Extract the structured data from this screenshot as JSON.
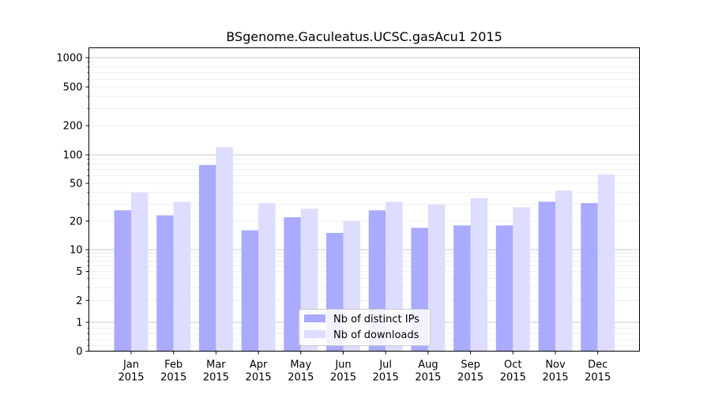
{
  "chart_data": {
    "type": "bar",
    "title": "BSgenome.Gaculeatus.UCSC.gasAcu1 2015",
    "xlabel": "",
    "ylabel": "",
    "yscale": "symlog",
    "ylim": [
      0,
      1300
    ],
    "grid": "y",
    "legend_position": "bottom-center",
    "categories": [
      [
        "Jan",
        "2015"
      ],
      [
        "Feb",
        "2015"
      ],
      [
        "Mar",
        "2015"
      ],
      [
        "Apr",
        "2015"
      ],
      [
        "May",
        "2015"
      ],
      [
        "Jun",
        "2015"
      ],
      [
        "Jul",
        "2015"
      ],
      [
        "Aug",
        "2015"
      ],
      [
        "Sep",
        "2015"
      ],
      [
        "Oct",
        "2015"
      ],
      [
        "Nov",
        "2015"
      ],
      [
        "Dec",
        "2015"
      ]
    ],
    "series": [
      {
        "name": "Nb of distinct IPs",
        "color": "#aaaaff",
        "values": [
          26,
          23,
          78,
          16,
          22,
          15,
          26,
          17,
          18,
          18,
          32,
          31
        ]
      },
      {
        "name": "Nb of downloads",
        "color": "#ddddff",
        "values": [
          40,
          32,
          120,
          31,
          27,
          20,
          32,
          30,
          35,
          28,
          42,
          62
        ]
      }
    ],
    "yticks": [
      {
        "value": 0,
        "label": "0"
      },
      {
        "value": 1,
        "label": "1"
      },
      {
        "value": 2,
        "label": "2"
      },
      {
        "value": 5,
        "label": "5"
      },
      {
        "value": 10,
        "label": "10"
      },
      {
        "value": 20,
        "label": "20"
      },
      {
        "value": 50,
        "label": "50"
      },
      {
        "value": 100,
        "label": "100"
      },
      {
        "value": 200,
        "label": "200"
      },
      {
        "value": 500,
        "label": "500"
      },
      {
        "value": 1000,
        "label": "1000"
      }
    ]
  }
}
